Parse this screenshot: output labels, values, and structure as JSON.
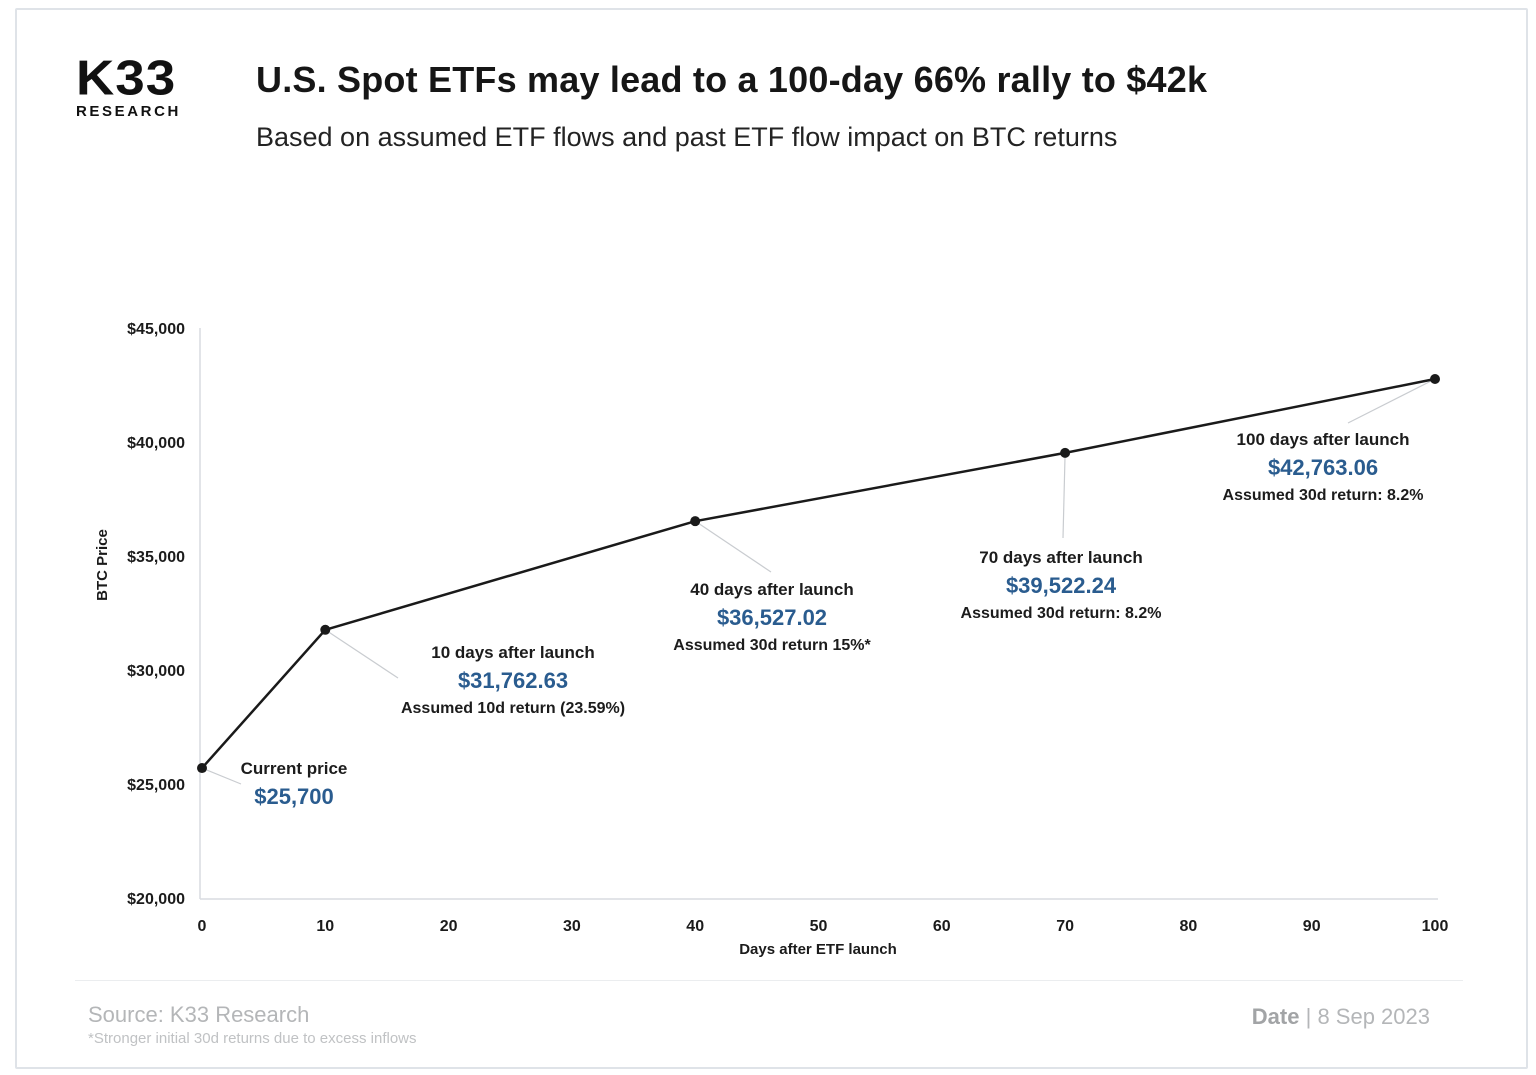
{
  "header": {
    "logo_brand": "K33",
    "logo_sub": "RESEARCH",
    "title": "U.S. Spot ETFs may lead to a 100-day 66% rally to $42k",
    "subtitle": "Based on assumed ETF flows and past ETF flow impact on BTC returns"
  },
  "chart_data": {
    "type": "line",
    "title": "",
    "xlabel": "Days after ETF launch",
    "ylabel": "BTC Price",
    "x": [
      0,
      10,
      40,
      70,
      100
    ],
    "y": [
      25700,
      31762.63,
      36527.02,
      39522.24,
      42763.06
    ],
    "xlim": [
      0,
      100
    ],
    "ylim": [
      20000,
      45000
    ],
    "xticks": [
      0,
      10,
      20,
      30,
      40,
      50,
      60,
      70,
      80,
      90,
      100
    ],
    "ytick_labels": [
      "$20,000",
      "$25,000",
      "$30,000",
      "$35,000",
      "$40,000",
      "$45,000"
    ],
    "yticks": [
      20000,
      25000,
      30000,
      35000,
      40000,
      45000
    ],
    "grid": false,
    "legend": "none",
    "line_color": "#1a1a1a",
    "value_color": "#2a5c8f",
    "annotations": [
      {
        "label": "Current price",
        "value": "$25,700",
        "note": ""
      },
      {
        "label": "10 days after launch",
        "value": "$31,762.63",
        "note": "Assumed 10d return (23.59%)"
      },
      {
        "label": "40 days after launch",
        "value": "$36,527.02",
        "note": "Assumed 30d return 15%*"
      },
      {
        "label": "70 days after launch",
        "value": "$39,522.24",
        "note": "Assumed 30d return: 8.2%"
      },
      {
        "label": "100 days after launch",
        "value": "$42,763.06",
        "note": "Assumed 30d return: 8.2%"
      }
    ]
  },
  "footer": {
    "source": "Source: K33 Research",
    "footnote": "*Stronger initial 30d returns due to excess inflows",
    "date_label": "Date",
    "date_separator": "|",
    "date_value": "8 Sep 2023"
  }
}
